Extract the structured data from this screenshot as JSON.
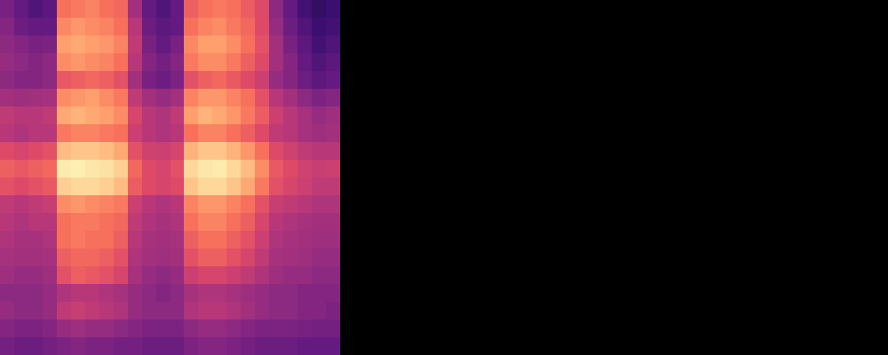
{
  "chart_data": {
    "type": "heatmap",
    "color": "magma",
    "tick_labels": false,
    "zlim": [
      0,
      1
    ],
    "cells": [
      [
        0.35,
        0.3,
        0.25,
        0.28,
        0.7,
        0.72,
        0.74,
        0.7,
        0.68,
        0.45,
        0.3,
        0.25,
        0.3,
        0.66,
        0.7,
        0.72,
        0.7,
        0.65,
        0.6,
        0.4,
        0.3,
        0.22,
        0.18,
        0.2
      ],
      [
        0.38,
        0.32,
        0.3,
        0.3,
        0.75,
        0.78,
        0.76,
        0.74,
        0.7,
        0.5,
        0.32,
        0.28,
        0.3,
        0.7,
        0.74,
        0.76,
        0.72,
        0.68,
        0.6,
        0.42,
        0.32,
        0.25,
        0.2,
        0.22
      ],
      [
        0.4,
        0.38,
        0.35,
        0.36,
        0.8,
        0.82,
        0.8,
        0.78,
        0.74,
        0.52,
        0.35,
        0.3,
        0.35,
        0.75,
        0.8,
        0.8,
        0.76,
        0.7,
        0.62,
        0.45,
        0.35,
        0.28,
        0.22,
        0.25
      ],
      [
        0.42,
        0.4,
        0.38,
        0.4,
        0.76,
        0.78,
        0.76,
        0.74,
        0.7,
        0.5,
        0.38,
        0.34,
        0.38,
        0.72,
        0.76,
        0.76,
        0.72,
        0.66,
        0.6,
        0.45,
        0.38,
        0.3,
        0.25,
        0.28
      ],
      [
        0.4,
        0.38,
        0.38,
        0.4,
        0.64,
        0.66,
        0.68,
        0.66,
        0.62,
        0.45,
        0.35,
        0.32,
        0.36,
        0.62,
        0.66,
        0.68,
        0.64,
        0.6,
        0.55,
        0.42,
        0.38,
        0.32,
        0.28,
        0.3
      ],
      [
        0.45,
        0.44,
        0.45,
        0.46,
        0.76,
        0.78,
        0.8,
        0.76,
        0.72,
        0.52,
        0.45,
        0.42,
        0.45,
        0.74,
        0.78,
        0.78,
        0.74,
        0.7,
        0.62,
        0.5,
        0.45,
        0.4,
        0.36,
        0.38
      ],
      [
        0.52,
        0.5,
        0.5,
        0.52,
        0.82,
        0.84,
        0.82,
        0.8,
        0.76,
        0.58,
        0.5,
        0.48,
        0.52,
        0.8,
        0.84,
        0.82,
        0.78,
        0.72,
        0.65,
        0.55,
        0.5,
        0.46,
        0.42,
        0.44
      ],
      [
        0.5,
        0.48,
        0.5,
        0.5,
        0.72,
        0.74,
        0.74,
        0.72,
        0.7,
        0.55,
        0.5,
        0.48,
        0.5,
        0.7,
        0.74,
        0.74,
        0.7,
        0.66,
        0.6,
        0.52,
        0.5,
        0.46,
        0.44,
        0.45
      ],
      [
        0.6,
        0.58,
        0.6,
        0.62,
        0.86,
        0.88,
        0.88,
        0.86,
        0.82,
        0.62,
        0.56,
        0.55,
        0.58,
        0.84,
        0.88,
        0.88,
        0.84,
        0.78,
        0.7,
        0.6,
        0.56,
        0.52,
        0.5,
        0.5
      ],
      [
        0.66,
        0.64,
        0.66,
        0.68,
        0.96,
        0.97,
        0.95,
        0.94,
        0.9,
        0.68,
        0.6,
        0.58,
        0.62,
        0.92,
        0.95,
        0.96,
        0.92,
        0.86,
        0.76,
        0.64,
        0.6,
        0.56,
        0.54,
        0.55
      ],
      [
        0.62,
        0.6,
        0.62,
        0.64,
        0.9,
        0.92,
        0.92,
        0.9,
        0.86,
        0.65,
        0.6,
        0.58,
        0.6,
        0.88,
        0.92,
        0.92,
        0.88,
        0.82,
        0.72,
        0.62,
        0.58,
        0.55,
        0.52,
        0.52
      ],
      [
        0.52,
        0.5,
        0.52,
        0.54,
        0.76,
        0.78,
        0.76,
        0.74,
        0.72,
        0.55,
        0.5,
        0.48,
        0.5,
        0.74,
        0.78,
        0.78,
        0.74,
        0.7,
        0.62,
        0.54,
        0.52,
        0.5,
        0.48,
        0.48
      ],
      [
        0.5,
        0.48,
        0.5,
        0.5,
        0.7,
        0.72,
        0.72,
        0.7,
        0.68,
        0.52,
        0.48,
        0.46,
        0.48,
        0.7,
        0.74,
        0.74,
        0.7,
        0.66,
        0.58,
        0.5,
        0.48,
        0.46,
        0.45,
        0.45
      ],
      [
        0.48,
        0.46,
        0.46,
        0.48,
        0.7,
        0.72,
        0.7,
        0.7,
        0.66,
        0.5,
        0.46,
        0.45,
        0.46,
        0.66,
        0.7,
        0.7,
        0.66,
        0.62,
        0.55,
        0.48,
        0.46,
        0.45,
        0.44,
        0.44
      ],
      [
        0.46,
        0.45,
        0.45,
        0.46,
        0.66,
        0.68,
        0.68,
        0.66,
        0.62,
        0.48,
        0.45,
        0.44,
        0.45,
        0.62,
        0.66,
        0.66,
        0.62,
        0.58,
        0.52,
        0.46,
        0.45,
        0.44,
        0.42,
        0.42
      ],
      [
        0.44,
        0.42,
        0.42,
        0.44,
        0.62,
        0.66,
        0.64,
        0.62,
        0.58,
        0.46,
        0.42,
        0.4,
        0.42,
        0.55,
        0.58,
        0.58,
        0.55,
        0.52,
        0.48,
        0.44,
        0.42,
        0.42,
        0.4,
        0.4
      ],
      [
        0.4,
        0.4,
        0.4,
        0.42,
        0.48,
        0.5,
        0.5,
        0.48,
        0.46,
        0.42,
        0.4,
        0.38,
        0.4,
        0.46,
        0.48,
        0.48,
        0.46,
        0.44,
        0.42,
        0.4,
        0.4,
        0.38,
        0.38,
        0.38
      ],
      [
        0.42,
        0.4,
        0.4,
        0.42,
        0.52,
        0.54,
        0.52,
        0.5,
        0.48,
        0.42,
        0.4,
        0.4,
        0.4,
        0.48,
        0.5,
        0.5,
        0.48,
        0.45,
        0.42,
        0.4,
        0.4,
        0.38,
        0.38,
        0.36
      ],
      [
        0.38,
        0.36,
        0.36,
        0.38,
        0.42,
        0.44,
        0.42,
        0.42,
        0.4,
        0.38,
        0.36,
        0.36,
        0.36,
        0.4,
        0.42,
        0.42,
        0.4,
        0.38,
        0.36,
        0.36,
        0.36,
        0.35,
        0.34,
        0.34
      ],
      [
        0.34,
        0.32,
        0.32,
        0.34,
        0.36,
        0.38,
        0.36,
        0.36,
        0.34,
        0.34,
        0.32,
        0.32,
        0.32,
        0.36,
        0.38,
        0.38,
        0.36,
        0.34,
        0.32,
        0.32,
        0.32,
        0.3,
        0.3,
        0.3
      ]
    ]
  }
}
